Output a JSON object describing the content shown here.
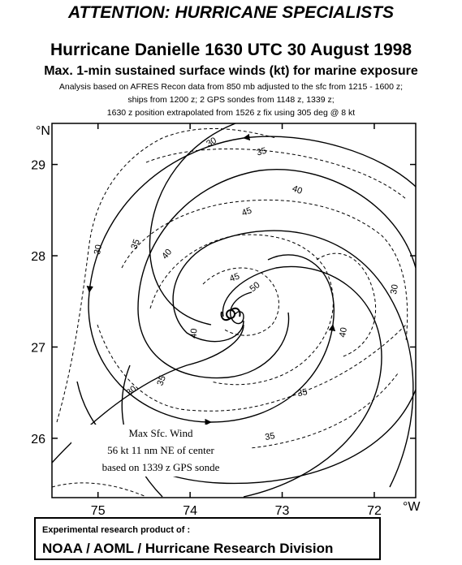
{
  "header": {
    "attention": "ATTENTION: HURRICANE SPECIALISTS",
    "title": "Hurricane Danielle 1630 UTC 30 August 1998",
    "subtitle": "Max. 1-min sustained surface winds (kt) for marine exposure",
    "notes": [
      "Analysis based on  AFRES Recon data from 850 mb adjusted to the sfc from 1215 - 1600 z;",
      "ships from 1200 z;  2 GPS sondes from 1148 z, 1339 z;",
      "1630 z position extrapolated from 1526 z fix using 305 deg @ 8 kt"
    ]
  },
  "map": {
    "lat_unit": "°N",
    "lon_unit": "°W",
    "lat_ticks": [
      "29",
      "28",
      "27",
      "26"
    ],
    "lon_ticks": [
      "75",
      "74",
      "73",
      "72"
    ],
    "lat_values": [
      29,
      28,
      27,
      26
    ],
    "lon_values": [
      75,
      74,
      73,
      72
    ],
    "extent": {
      "lon_west": 75.5,
      "lon_east": 71.55,
      "lat_south": 25.35,
      "lat_north": 29.45
    },
    "center": {
      "lon": 73.56,
      "lat": 27.36
    },
    "contour_labels": [
      "30",
      "35",
      "40",
      "45",
      "50",
      "30",
      "35",
      "40",
      "45",
      "40",
      "35",
      "35",
      "30",
      "30",
      "40",
      "35"
    ],
    "info_box": [
      "Max Sfc. Wind",
      "56 kt  11 nm NE of center",
      "based on 1339 z GPS sonde"
    ]
  },
  "footer": {
    "line1": "Experimental research product of :",
    "line2": "NOAA / AOML / Hurricane Research Division"
  }
}
